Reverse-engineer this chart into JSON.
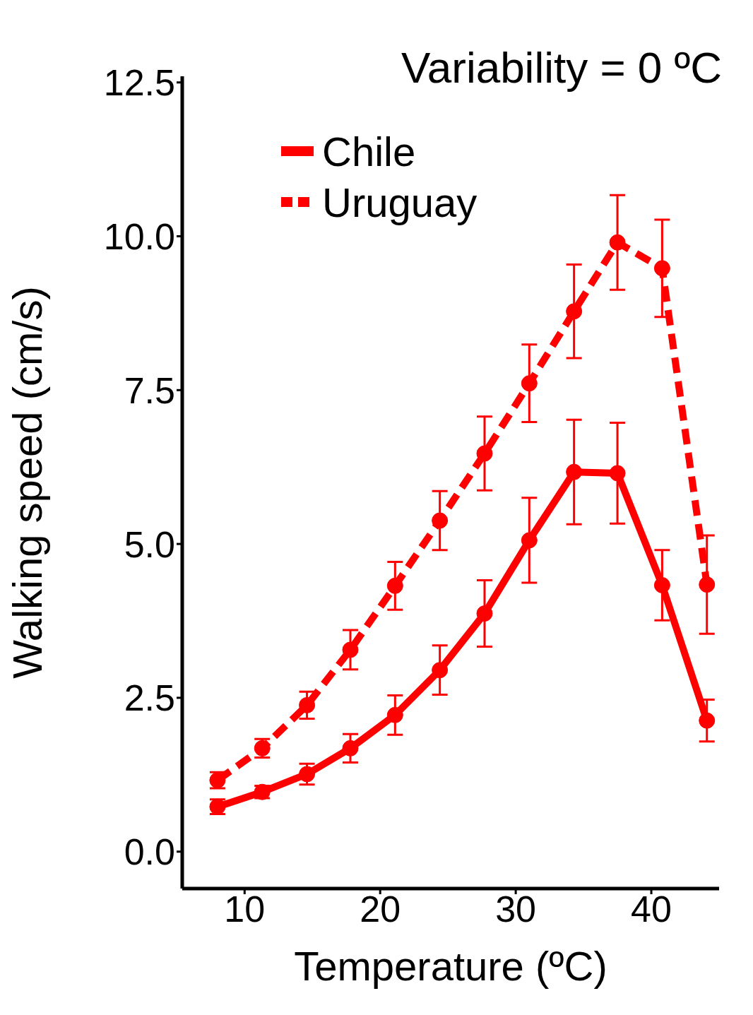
{
  "chart_data": {
    "type": "line",
    "title": "Variability = 0 ºC",
    "xlabel": "Temperature (ºC)",
    "ylabel": "Walking speed (cm/s)",
    "x": [
      8,
      11.3,
      14.6,
      17.8,
      21.1,
      24.4,
      27.7,
      31,
      34.3,
      37.5,
      40.8,
      44.1
    ],
    "series": [
      {
        "name": "Chile",
        "color": "#ff0000",
        "line_style": "solid",
        "values": [
          0.73,
          0.97,
          1.26,
          1.68,
          2.22,
          2.95,
          3.87,
          5.06,
          6.17,
          6.15,
          4.33,
          2.13
        ],
        "errors": [
          0.12,
          0.1,
          0.17,
          0.23,
          0.32,
          0.4,
          0.54,
          0.69,
          0.85,
          0.82,
          0.57,
          0.34
        ]
      },
      {
        "name": "Uruguay",
        "color": "#ff0000",
        "line_style": "dashed",
        "values": [
          1.16,
          1.68,
          2.38,
          3.28,
          4.32,
          5.38,
          6.47,
          7.61,
          8.78,
          9.9,
          9.48,
          4.34
        ],
        "errors": [
          0.13,
          0.15,
          0.22,
          0.32,
          0.39,
          0.48,
          0.6,
          0.63,
          0.76,
          0.77,
          0.79,
          0.8
        ]
      }
    ],
    "xlim": [
      5.4,
      45
    ],
    "xticks": [
      10,
      20,
      30,
      40
    ],
    "ylim": [
      -0.6,
      12.6
    ],
    "yticks": [
      {
        "value": 0,
        "label": "0.0"
      },
      {
        "value": 2.5,
        "label": "2.5"
      },
      {
        "value": 5,
        "label": "5.0"
      },
      {
        "value": 7.5,
        "label": "7.5"
      },
      {
        "value": 10,
        "label": "10.0"
      },
      {
        "value": 12.5,
        "label": "12.5"
      }
    ],
    "marker": "circle",
    "grid": false,
    "legend": "top left"
  }
}
